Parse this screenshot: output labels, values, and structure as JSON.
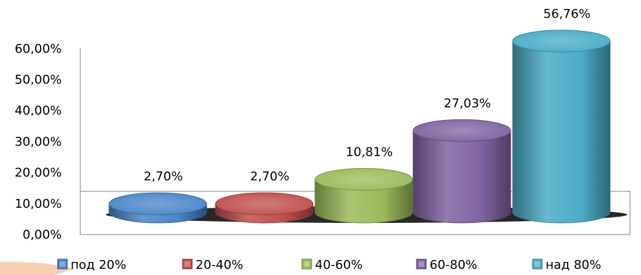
{
  "chart_data": {
    "type": "bar",
    "style": "3d-cylinder",
    "categories": [
      "под 20%",
      "20-40%",
      "40-60%",
      "60-80%",
      "над 80%"
    ],
    "values": [
      2.7,
      2.7,
      10.81,
      27.03,
      56.76
    ],
    "data_labels": [
      "2,70%",
      "2,70%",
      "10,81%",
      "27,03%",
      "56,76%"
    ],
    "colors": [
      "#4a86c8",
      "#c0504d",
      "#9bbb59",
      "#8064a2",
      "#4bacc6"
    ],
    "ylim": [
      0,
      60
    ],
    "yticks": [
      0,
      10,
      20,
      30,
      40,
      50,
      60
    ],
    "ytick_labels": [
      "0,00%",
      "10,00%",
      "20,00%",
      "30,00%",
      "40,00%",
      "50,00%",
      "60,00%"
    ],
    "grid": false,
    "legend": "bottom"
  }
}
